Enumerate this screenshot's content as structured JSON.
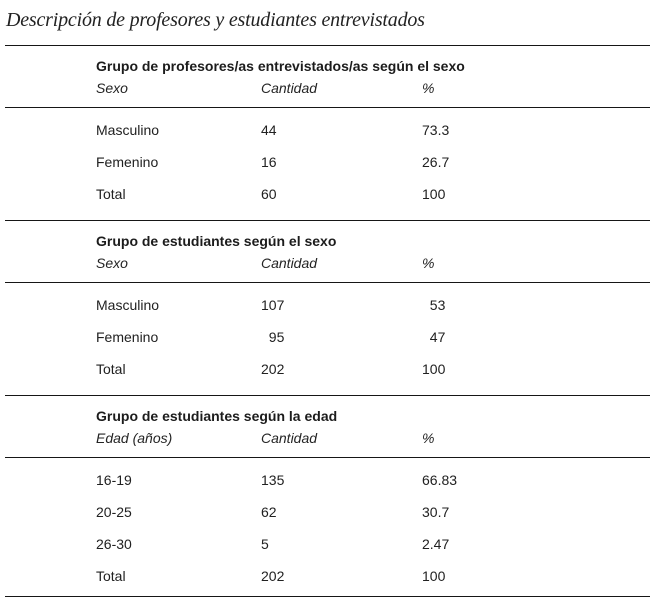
{
  "document": {
    "title": "Descripción de profesores y estudiantes entrevistados"
  },
  "colors": {
    "background": "#ffffff",
    "text": "#1f1f1f",
    "rule": "#161616"
  },
  "sections": [
    {
      "title": "Grupo de profesores/as entrevistados/as según el sexo",
      "headers": [
        "Sexo",
        "Cantidad",
        "%"
      ],
      "rows": [
        [
          "Masculino",
          "44",
          "73.3"
        ],
        [
          "Femenino",
          "16",
          "26.7"
        ],
        [
          "Total",
          "60",
          "100"
        ]
      ]
    },
    {
      "title": "Grupo de estudiantes según el sexo",
      "headers": [
        "Sexo",
        "Cantidad",
        "%"
      ],
      "rows": [
        [
          "Masculino",
          "107",
          "  53"
        ],
        [
          "Femenino",
          "  95",
          "  47"
        ],
        [
          "Total",
          "202",
          "100"
        ]
      ]
    },
    {
      "title": "Grupo de estudiantes según la edad",
      "headers": [
        "Edad (años)",
        "Cantidad",
        "%"
      ],
      "rows": [
        [
          "16-19",
          "135",
          "66.83"
        ],
        [
          "20-25",
          "62",
          "30.7"
        ],
        [
          "26-30",
          "5",
          "2.47"
        ],
        [
          "Total",
          "202",
          "100"
        ]
      ]
    }
  ]
}
